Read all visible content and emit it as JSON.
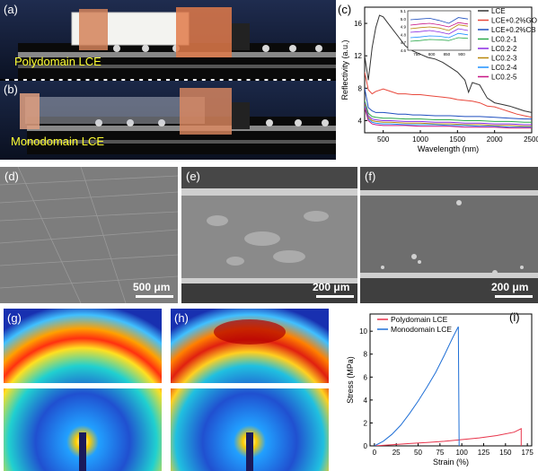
{
  "panel_labels": {
    "a": "(a)",
    "b": "(b)",
    "c": "(c)",
    "d": "(d)",
    "e": "(e)",
    "f": "(f)",
    "g": "(g)",
    "h": "(h)",
    "i": "(i)"
  },
  "photos": {
    "top_caption": "Polydomain LCE",
    "bottom_caption": "Monodomain LCE"
  },
  "sem": {
    "d_scalebar": "500 μm",
    "e_scalebar": "200 μm",
    "f_scalebar": "200 μm"
  },
  "chart_data": [
    {
      "type": "line",
      "panel": "c",
      "xlabel": "Wavelength (nm)",
      "ylabel": "Reflectivity (a.u.)",
      "xlim": [
        250,
        2500
      ],
      "ylim": [
        2.5,
        18
      ],
      "xticks": [
        500,
        1000,
        1500,
        2000,
        2500
      ],
      "yticks": [
        4,
        8,
        12,
        16
      ],
      "legend_position": "top-right",
      "series": [
        {
          "name": "LCE",
          "color": "#333333",
          "x": [
            250,
            300,
            350,
            400,
            450,
            500,
            550,
            600,
            700,
            800,
            900,
            1000,
            1100,
            1200,
            1300,
            1400,
            1500,
            1600,
            1650,
            1700,
            1800,
            1900,
            2000,
            2100,
            2200,
            2300,
            2400,
            2500
          ],
          "y": [
            12,
            9,
            13,
            15.5,
            17,
            16.8,
            16.2,
            15.6,
            14.4,
            13.2,
            12.6,
            12.2,
            11.8,
            11.6,
            11.2,
            10.6,
            10,
            9,
            7.5,
            8.7,
            8.4,
            6.8,
            6.2,
            6,
            5.8,
            5.5,
            5.2,
            5
          ]
        },
        {
          "name": "LCE+0.2%GO",
          "color": "#e8483c",
          "x": [
            250,
            300,
            350,
            400,
            500,
            600,
            700,
            800,
            900,
            1000,
            1100,
            1200,
            1300,
            1400,
            1500,
            1600,
            1700,
            1800,
            1900,
            2000,
            2100,
            2200,
            2300,
            2400,
            2500
          ],
          "y": [
            10,
            7.8,
            7.3,
            7.6,
            7.9,
            7.6,
            7.3,
            7.3,
            7.2,
            7.2,
            7.1,
            7.0,
            6.9,
            6.8,
            6.6,
            6.5,
            6.4,
            6.2,
            5.8,
            5.7,
            5.4,
            5.1,
            4.8,
            4.6,
            4.4
          ]
        },
        {
          "name": "LCE+0.2%CB",
          "color": "#1f4fbf",
          "x": [
            250,
            300,
            350,
            400,
            500,
            600,
            700,
            800,
            900,
            1000,
            1200,
            1400,
            1600,
            1800,
            2000,
            2200,
            2400,
            2500
          ],
          "y": [
            8,
            5.6,
            5.2,
            5.0,
            5.0,
            4.9,
            4.8,
            4.8,
            4.7,
            4.7,
            4.6,
            4.6,
            4.5,
            4.5,
            4.4,
            4.3,
            4.2,
            4.2
          ]
        },
        {
          "name": "LC0.2-1",
          "color": "#2aa84a",
          "x": [
            250,
            300,
            350,
            400,
            500,
            600,
            800,
            1000,
            1200,
            1400,
            1600,
            1800,
            2000,
            2200,
            2400,
            2500
          ],
          "y": [
            6.5,
            4.9,
            4.5,
            4.4,
            4.3,
            4.3,
            4.2,
            4.2,
            4.1,
            4.1,
            4.0,
            4.0,
            3.9,
            3.9,
            3.8,
            3.8
          ]
        },
        {
          "name": "LC0.2-2",
          "color": "#8a2be2",
          "x": [
            250,
            300,
            350,
            400,
            500,
            600,
            800,
            1000,
            1200,
            1400,
            1600,
            1800,
            2000,
            2200,
            2400,
            2500
          ],
          "y": [
            6.2,
            4.6,
            4.2,
            4.1,
            4.0,
            4.0,
            3.9,
            3.9,
            3.8,
            3.8,
            3.7,
            3.7,
            3.6,
            3.6,
            3.5,
            3.5
          ]
        },
        {
          "name": "LC0.2-3",
          "color": "#b8860b",
          "x": [
            250,
            300,
            350,
            400,
            500,
            600,
            800,
            1000,
            1200,
            1400,
            1600,
            1800,
            2000,
            2200,
            2400,
            2500
          ],
          "y": [
            6.0,
            4.4,
            4.0,
            3.9,
            3.8,
            3.8,
            3.7,
            3.7,
            3.6,
            3.6,
            3.5,
            3.5,
            3.4,
            3.4,
            3.3,
            3.3
          ]
        },
        {
          "name": "LC0.2-4",
          "color": "#1e90ff",
          "x": [
            250,
            300,
            350,
            400,
            500,
            600,
            800,
            1000,
            1200,
            1400,
            1600,
            1800,
            2000,
            2200,
            2400,
            2500
          ],
          "y": [
            5.8,
            4.2,
            3.8,
            3.7,
            3.6,
            3.6,
            3.5,
            3.5,
            3.5,
            3.4,
            3.4,
            3.3,
            3.3,
            3.2,
            3.2,
            3.2
          ]
        },
        {
          "name": "LC0.2-5",
          "color": "#c71585",
          "x": [
            250,
            300,
            350,
            400,
            500,
            600,
            800,
            1000,
            1200,
            1400,
            1600,
            1800,
            2000,
            2200,
            2400,
            2500
          ],
          "y": [
            5.6,
            4.0,
            3.6,
            3.5,
            3.4,
            3.4,
            3.4,
            3.3,
            3.3,
            3.3,
            3.2,
            3.2,
            3.2,
            3.1,
            3.1,
            3.1
          ]
        }
      ],
      "inset": {
        "xlim": [
          720,
          930
        ],
        "ylim": [
          4.6,
          5.1
        ],
        "xticks": [
          750,
          800,
          850,
          900
        ],
        "yticks": [
          4.6,
          4.7,
          4.8,
          4.9,
          5.0,
          5.1
        ]
      }
    },
    {
      "type": "line",
      "panel": "i",
      "xlabel": "Strain (%)",
      "ylabel": "Stress (MPa)",
      "xlim": [
        -5,
        180
      ],
      "ylim": [
        0,
        11.5
      ],
      "xticks": [
        0,
        25,
        50,
        75,
        100,
        125,
        150,
        175
      ],
      "yticks": [
        0,
        2,
        4,
        6,
        8,
        10
      ],
      "legend_position": "top-left",
      "series": [
        {
          "name": "Polydomain LCE",
          "color": "#e8334a",
          "x": [
            0,
            20,
            40,
            60,
            80,
            100,
            120,
            140,
            160,
            168,
            168
          ],
          "y": [
            0,
            0.1,
            0.2,
            0.3,
            0.4,
            0.55,
            0.7,
            0.9,
            1.2,
            1.5,
            0
          ]
        },
        {
          "name": "Monodomain LCE",
          "color": "#1f6fd6",
          "x": [
            0,
            10,
            20,
            30,
            40,
            50,
            60,
            70,
            80,
            90,
            96,
            97
          ],
          "y": [
            0,
            0.4,
            1.0,
            1.8,
            2.8,
            3.9,
            5.1,
            6.4,
            7.9,
            9.5,
            10.4,
            0
          ]
        }
      ]
    }
  ]
}
